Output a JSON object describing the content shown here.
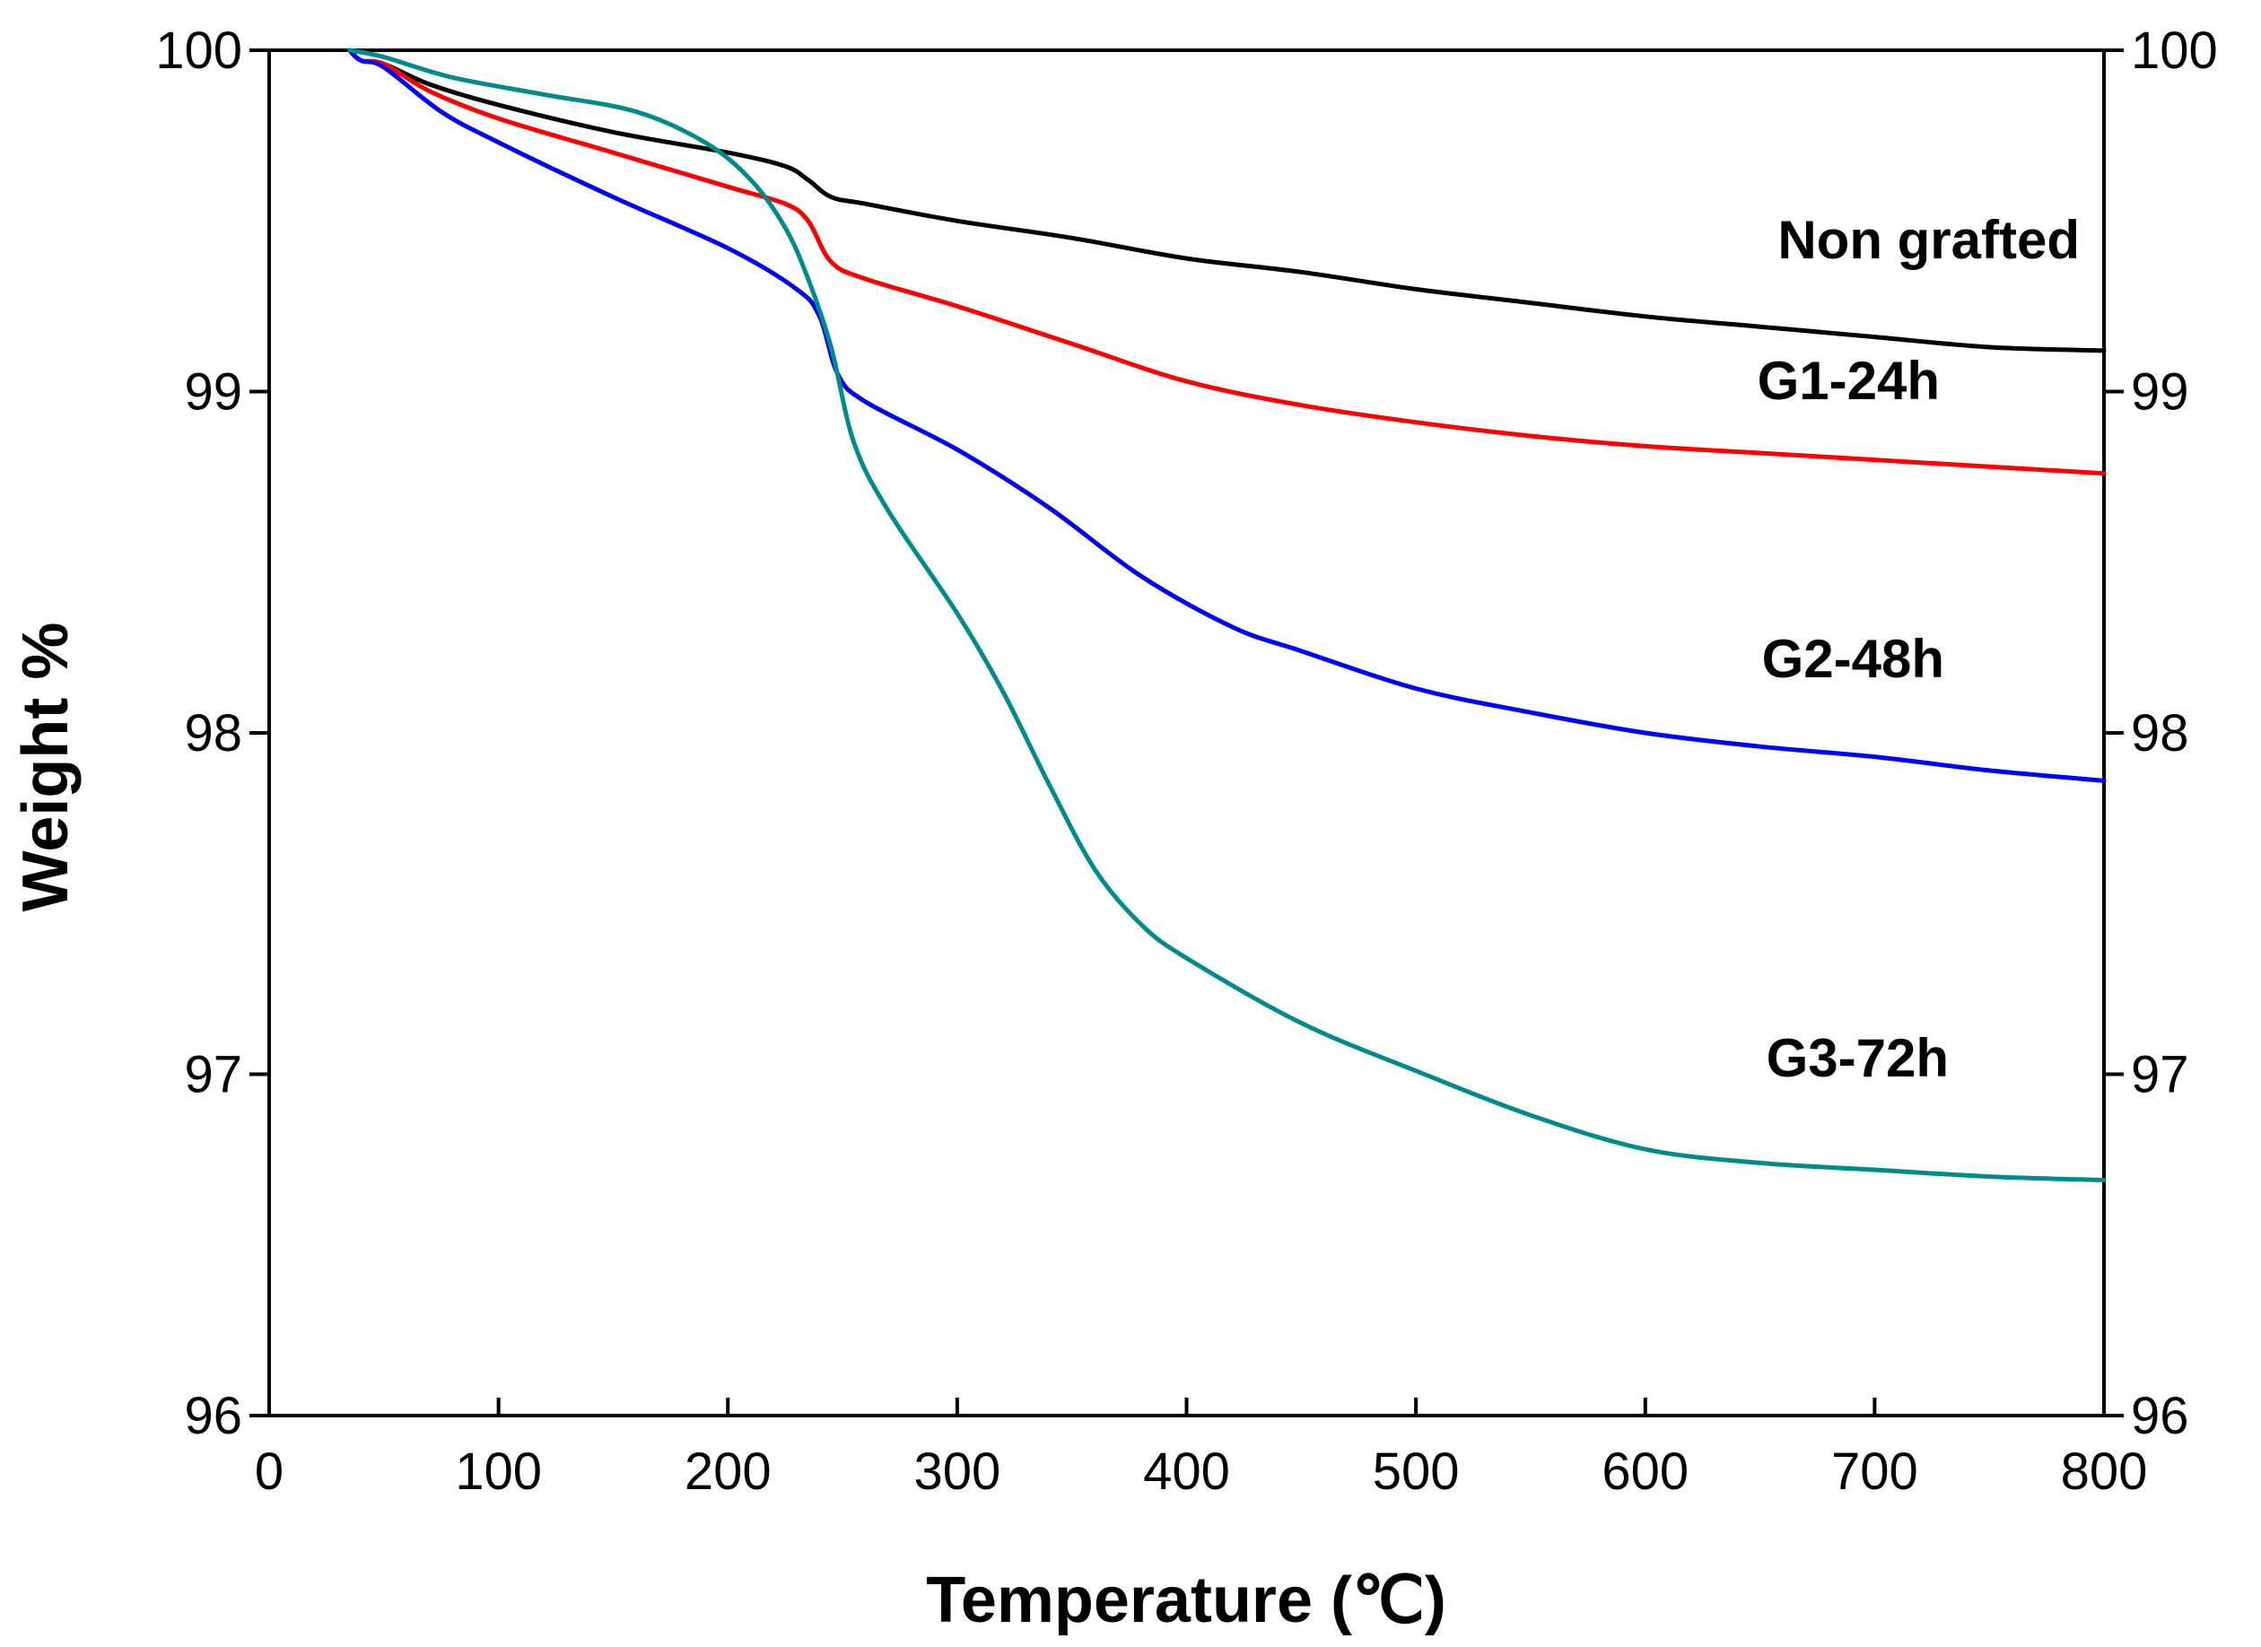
{
  "chart_data": {
    "type": "line",
    "title": "",
    "xlabel": "Temperature (℃)",
    "ylabel": "Weight %",
    "xlim": [
      0,
      800
    ],
    "ylim": [
      96,
      100
    ],
    "x_ticks": [
      "0",
      "100",
      "200",
      "300",
      "400",
      "500",
      "600",
      "700",
      "800"
    ],
    "y_ticks": [
      "96",
      "97",
      "98",
      "99",
      "100"
    ],
    "y_ticks_right": [
      "96",
      "97",
      "98",
      "99",
      "100"
    ],
    "grid": false,
    "legend": "inline labels at right",
    "series": [
      {
        "name": "Non grafted",
        "color": "#000000",
        "points": [
          [
            35,
            100
          ],
          [
            40,
            99.97
          ],
          [
            50,
            99.96
          ],
          [
            70,
            99.9
          ],
          [
            100,
            99.84
          ],
          [
            150,
            99.76
          ],
          [
            200,
            99.7
          ],
          [
            225,
            99.66
          ],
          [
            235,
            99.62
          ],
          [
            245,
            99.57
          ],
          [
            260,
            99.55
          ],
          [
            300,
            99.5
          ],
          [
            350,
            99.45
          ],
          [
            400,
            99.39
          ],
          [
            450,
            99.35
          ],
          [
            500,
            99.3
          ],
          [
            550,
            99.26
          ],
          [
            600,
            99.22
          ],
          [
            650,
            99.19
          ],
          [
            700,
            99.16
          ],
          [
            750,
            99.13
          ],
          [
            800,
            99.12
          ]
        ]
      },
      {
        "name": "G1-24h",
        "color": "#ff0000",
        "points": [
          [
            35,
            100
          ],
          [
            40,
            99.97
          ],
          [
            50,
            99.96
          ],
          [
            70,
            99.88
          ],
          [
            100,
            99.8
          ],
          [
            150,
            99.7
          ],
          [
            200,
            99.6
          ],
          [
            225,
            99.55
          ],
          [
            235,
            99.5
          ],
          [
            245,
            99.38
          ],
          [
            260,
            99.33
          ],
          [
            300,
            99.25
          ],
          [
            350,
            99.14
          ],
          [
            400,
            99.03
          ],
          [
            450,
            98.96
          ],
          [
            500,
            98.91
          ],
          [
            550,
            98.87
          ],
          [
            600,
            98.84
          ],
          [
            650,
            98.82
          ],
          [
            700,
            98.8
          ],
          [
            750,
            98.78
          ],
          [
            800,
            98.76
          ]
        ]
      },
      {
        "name": "G2-48h",
        "color": "#0000ff",
        "points": [
          [
            35,
            100
          ],
          [
            40,
            99.97
          ],
          [
            50,
            99.95
          ],
          [
            75,
            99.82
          ],
          [
            100,
            99.73
          ],
          [
            150,
            99.57
          ],
          [
            200,
            99.42
          ],
          [
            230,
            99.3
          ],
          [
            240,
            99.22
          ],
          [
            248,
            99.05
          ],
          [
            260,
            98.97
          ],
          [
            300,
            98.83
          ],
          [
            340,
            98.66
          ],
          [
            380,
            98.46
          ],
          [
            420,
            98.31
          ],
          [
            450,
            98.24
          ],
          [
            500,
            98.13
          ],
          [
            550,
            98.06
          ],
          [
            600,
            98.0
          ],
          [
            650,
            97.96
          ],
          [
            700,
            97.93
          ],
          [
            750,
            97.89
          ],
          [
            800,
            97.86
          ]
        ]
      },
      {
        "name": "G3-72h",
        "color": "#008b8b",
        "points": [
          [
            35,
            100
          ],
          [
            50,
            99.98
          ],
          [
            80,
            99.92
          ],
          [
            120,
            99.87
          ],
          [
            160,
            99.82
          ],
          [
            190,
            99.73
          ],
          [
            210,
            99.62
          ],
          [
            225,
            99.48
          ],
          [
            235,
            99.33
          ],
          [
            245,
            99.13
          ],
          [
            255,
            98.85
          ],
          [
            270,
            98.65
          ],
          [
            300,
            98.35
          ],
          [
            320,
            98.12
          ],
          [
            340,
            97.85
          ],
          [
            360,
            97.6
          ],
          [
            380,
            97.44
          ],
          [
            400,
            97.34
          ],
          [
            450,
            97.15
          ],
          [
            500,
            97.01
          ],
          [
            550,
            96.88
          ],
          [
            600,
            96.78
          ],
          [
            650,
            96.74
          ],
          [
            700,
            96.72
          ],
          [
            750,
            96.7
          ],
          [
            800,
            96.69
          ]
        ]
      }
    ]
  }
}
